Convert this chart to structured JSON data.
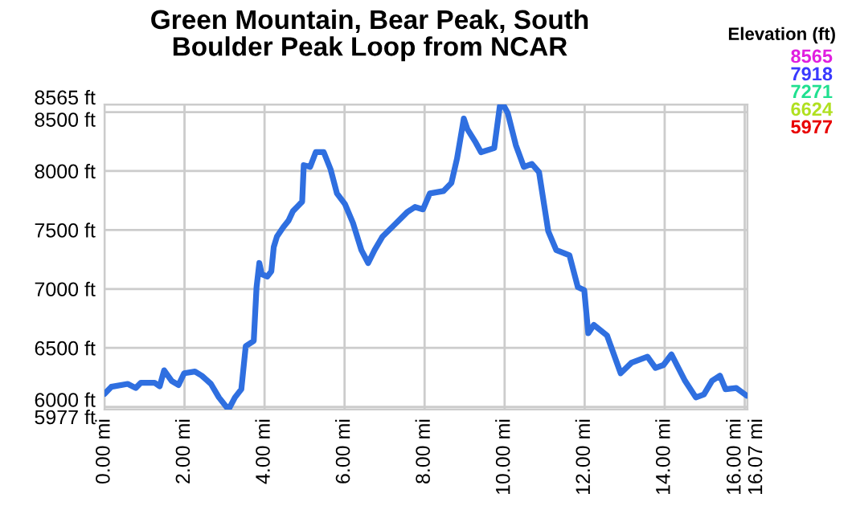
{
  "chart_data": {
    "type": "line",
    "title": "Green Mountain, Bear Peak, South\nBoulder Peak Loop from NCAR",
    "legend_title": "Elevation (ft)",
    "annotations": [
      "8565",
      "7918",
      "7271",
      "6624",
      "5977"
    ],
    "colors": [
      "#e020e0",
      "#3a3aff",
      "#20e090",
      "#b0e020",
      "#e80000"
    ],
    "series": [
      {
        "color": "#2f6fe0",
        "x": [
          0,
          0.17,
          0.58,
          0.78,
          0.91,
          1.25,
          1.38,
          1.49,
          1.68,
          1.85,
          1.99,
          2.26,
          2.43,
          2.66,
          2.86,
          3.1,
          3.26,
          3.42,
          3.53,
          3.73,
          3.8,
          3.87,
          3.93,
          4.07,
          4.17,
          4.23,
          4.31,
          4.47,
          4.6,
          4.71,
          4.94,
          4.98,
          5.14,
          5.28,
          5.48,
          5.65,
          5.81,
          6.01,
          6.21,
          6.42,
          6.59,
          6.75,
          6.95,
          7.22,
          7.56,
          7.76,
          7.96,
          8.13,
          8.47,
          8.67,
          8.81,
          8.98,
          9.07,
          9.28,
          9.41,
          9.74,
          9.88,
          9.97,
          10.08,
          10.28,
          10.48,
          10.68,
          10.86,
          11.09,
          11.29,
          11.62,
          11.83,
          11.99,
          12.09,
          12.23,
          12.56,
          12.9,
          13.17,
          13.57,
          13.77,
          13.97,
          14.17,
          14.51,
          14.78,
          14.98,
          15.18,
          15.38,
          15.52,
          15.79,
          16.05
        ],
        "values": [
          6110,
          6170,
          6195,
          6160,
          6205,
          6205,
          6175,
          6310,
          6220,
          6185,
          6285,
          6300,
          6265,
          6195,
          6080,
          5977,
          6080,
          6150,
          6515,
          6560,
          7015,
          7220,
          7125,
          7105,
          7150,
          7355,
          7445,
          7525,
          7580,
          7660,
          7740,
          8050,
          8035,
          8160,
          8160,
          8015,
          7810,
          7720,
          7560,
          7330,
          7220,
          7330,
          7445,
          7535,
          7650,
          7695,
          7675,
          7810,
          7830,
          7900,
          8105,
          8445,
          8355,
          8240,
          8160,
          8195,
          8550,
          8560,
          8490,
          8220,
          8035,
          8060,
          7990,
          7490,
          7330,
          7285,
          7015,
          6990,
          6625,
          6695,
          6605,
          6285,
          6375,
          6425,
          6330,
          6355,
          6445,
          6220,
          6080,
          6105,
          6220,
          6265,
          6150,
          6160,
          6095
        ]
      }
    ],
    "xlim": [
      0,
      16.07
    ],
    "ylim": [
      5977,
      8565
    ],
    "xticks": [
      {
        "value": 0,
        "label": "0.00 mi"
      },
      {
        "value": 2,
        "label": "2.00 mi"
      },
      {
        "value": 4,
        "label": "4.00 mi"
      },
      {
        "value": 6,
        "label": "6.00 mi"
      },
      {
        "value": 8,
        "label": "8.00 mi"
      },
      {
        "value": 10,
        "label": "10.00 mi"
      },
      {
        "value": 12,
        "label": "12.00 mi"
      },
      {
        "value": 14,
        "label": "14.00 mi"
      },
      {
        "value": 16,
        "label": "16.00 mi"
      },
      {
        "value": 16.07,
        "label": "16.07 mi"
      }
    ],
    "yticks": [
      {
        "value": 5977,
        "label": "5977 ft"
      },
      {
        "value": 6000,
        "label": "6000 ft"
      },
      {
        "value": 6500,
        "label": "6500 ft"
      },
      {
        "value": 7000,
        "label": "7000 ft"
      },
      {
        "value": 7500,
        "label": "7500 ft"
      },
      {
        "value": 8000,
        "label": "8000 ft"
      },
      {
        "value": 8500,
        "label": "8500 ft"
      },
      {
        "value": 8565,
        "label": "8565 ft"
      }
    ],
    "grid": true
  }
}
